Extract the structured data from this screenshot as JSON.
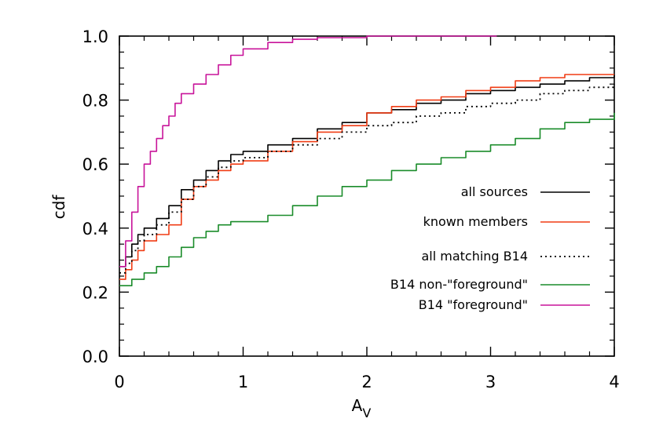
{
  "chart_data": {
    "type": "line",
    "xlabel": "A",
    "xlabel_sub": "V",
    "ylabel": "cdf",
    "xlim": [
      0,
      4
    ],
    "ylim": [
      0,
      1.0
    ],
    "x_ticks": [
      0,
      1,
      2,
      3,
      4
    ],
    "x_tick_labels": [
      "0",
      "1",
      "2",
      "3",
      "4"
    ],
    "y_ticks": [
      0.0,
      0.2,
      0.4,
      0.6,
      0.8,
      1.0
    ],
    "y_tick_labels": [
      "0.0",
      "0.2",
      "0.4",
      "0.6",
      "0.8",
      "1.0"
    ],
    "grid": false,
    "legend_position": "right",
    "series": [
      {
        "name": "all sources",
        "color": "#000000",
        "style": "solid",
        "points": [
          [
            0,
            0.28
          ],
          [
            0.05,
            0.31
          ],
          [
            0.1,
            0.35
          ],
          [
            0.15,
            0.38
          ],
          [
            0.2,
            0.4
          ],
          [
            0.3,
            0.43
          ],
          [
            0.4,
            0.47
          ],
          [
            0.5,
            0.52
          ],
          [
            0.6,
            0.55
          ],
          [
            0.7,
            0.58
          ],
          [
            0.8,
            0.61
          ],
          [
            0.9,
            0.63
          ],
          [
            1.0,
            0.64
          ],
          [
            1.2,
            0.66
          ],
          [
            1.4,
            0.68
          ],
          [
            1.6,
            0.71
          ],
          [
            1.8,
            0.73
          ],
          [
            2.0,
            0.76
          ],
          [
            2.2,
            0.77
          ],
          [
            2.4,
            0.79
          ],
          [
            2.6,
            0.8
          ],
          [
            2.8,
            0.82
          ],
          [
            3.0,
            0.83
          ],
          [
            3.2,
            0.84
          ],
          [
            3.4,
            0.85
          ],
          [
            3.6,
            0.86
          ],
          [
            3.8,
            0.87
          ],
          [
            4.0,
            0.88
          ]
        ]
      },
      {
        "name": "known members",
        "color": "#f03c14",
        "style": "solid",
        "points": [
          [
            0,
            0.24
          ],
          [
            0.05,
            0.27
          ],
          [
            0.1,
            0.3
          ],
          [
            0.15,
            0.33
          ],
          [
            0.2,
            0.36
          ],
          [
            0.3,
            0.38
          ],
          [
            0.4,
            0.41
          ],
          [
            0.5,
            0.49
          ],
          [
            0.6,
            0.53
          ],
          [
            0.7,
            0.55
          ],
          [
            0.8,
            0.58
          ],
          [
            0.9,
            0.6
          ],
          [
            1.0,
            0.61
          ],
          [
            1.2,
            0.64
          ],
          [
            1.4,
            0.67
          ],
          [
            1.6,
            0.7
          ],
          [
            1.8,
            0.72
          ],
          [
            2.0,
            0.76
          ],
          [
            2.2,
            0.78
          ],
          [
            2.4,
            0.8
          ],
          [
            2.6,
            0.81
          ],
          [
            2.8,
            0.83
          ],
          [
            3.0,
            0.84
          ],
          [
            3.2,
            0.86
          ],
          [
            3.4,
            0.87
          ],
          [
            3.6,
            0.88
          ],
          [
            3.8,
            0.88
          ],
          [
            4.0,
            0.88
          ]
        ]
      },
      {
        "name": "all matching B14",
        "color": "#000000",
        "style": "dotted",
        "points": [
          [
            0,
            0.26
          ],
          [
            0.05,
            0.29
          ],
          [
            0.1,
            0.33
          ],
          [
            0.15,
            0.36
          ],
          [
            0.2,
            0.38
          ],
          [
            0.3,
            0.41
          ],
          [
            0.4,
            0.45
          ],
          [
            0.5,
            0.49
          ],
          [
            0.6,
            0.53
          ],
          [
            0.7,
            0.56
          ],
          [
            0.8,
            0.59
          ],
          [
            0.9,
            0.61
          ],
          [
            1.0,
            0.62
          ],
          [
            1.2,
            0.64
          ],
          [
            1.4,
            0.66
          ],
          [
            1.6,
            0.68
          ],
          [
            1.8,
            0.7
          ],
          [
            2.0,
            0.72
          ],
          [
            2.2,
            0.73
          ],
          [
            2.4,
            0.75
          ],
          [
            2.6,
            0.76
          ],
          [
            2.8,
            0.78
          ],
          [
            3.0,
            0.79
          ],
          [
            3.2,
            0.8
          ],
          [
            3.4,
            0.82
          ],
          [
            3.6,
            0.83
          ],
          [
            3.8,
            0.84
          ],
          [
            4.0,
            0.85
          ]
        ]
      },
      {
        "name": "B14 non-\"foreground\"",
        "color": "#1a8c2a",
        "style": "solid",
        "points": [
          [
            0,
            0.22
          ],
          [
            0.1,
            0.24
          ],
          [
            0.2,
            0.26
          ],
          [
            0.3,
            0.28
          ],
          [
            0.4,
            0.31
          ],
          [
            0.5,
            0.34
          ],
          [
            0.6,
            0.37
          ],
          [
            0.7,
            0.39
          ],
          [
            0.8,
            0.41
          ],
          [
            0.9,
            0.42
          ],
          [
            1.0,
            0.42
          ],
          [
            1.2,
            0.44
          ],
          [
            1.4,
            0.47
          ],
          [
            1.6,
            0.5
          ],
          [
            1.8,
            0.53
          ],
          [
            2.0,
            0.55
          ],
          [
            2.2,
            0.58
          ],
          [
            2.4,
            0.6
          ],
          [
            2.6,
            0.62
          ],
          [
            2.8,
            0.64
          ],
          [
            3.0,
            0.66
          ],
          [
            3.2,
            0.68
          ],
          [
            3.4,
            0.71
          ],
          [
            3.6,
            0.73
          ],
          [
            3.8,
            0.74
          ],
          [
            4.0,
            0.76
          ]
        ]
      },
      {
        "name": "B14 \"foreground\"",
        "color": "#c8149a",
        "style": "solid",
        "points": [
          [
            0,
            0.28
          ],
          [
            0.05,
            0.36
          ],
          [
            0.1,
            0.45
          ],
          [
            0.15,
            0.53
          ],
          [
            0.2,
            0.6
          ],
          [
            0.25,
            0.64
          ],
          [
            0.3,
            0.68
          ],
          [
            0.35,
            0.72
          ],
          [
            0.4,
            0.75
          ],
          [
            0.45,
            0.79
          ],
          [
            0.5,
            0.82
          ],
          [
            0.6,
            0.85
          ],
          [
            0.7,
            0.88
          ],
          [
            0.8,
            0.91
          ],
          [
            0.9,
            0.94
          ],
          [
            1.0,
            0.96
          ],
          [
            1.2,
            0.98
          ],
          [
            1.4,
            0.99
          ],
          [
            1.6,
            0.995
          ],
          [
            2.0,
            1.0
          ],
          [
            2.5,
            1.0
          ],
          [
            3.05,
            1.0
          ]
        ]
      }
    ]
  }
}
